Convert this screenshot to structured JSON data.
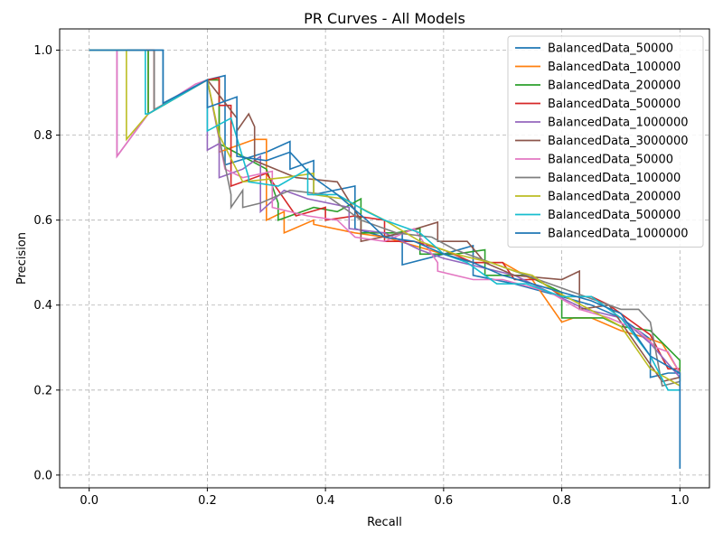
{
  "chart_data": {
    "type": "line",
    "title": "PR Curves - All Models",
    "xlabel": "Recall",
    "ylabel": "Precision",
    "xlim": [
      -0.05,
      1.05
    ],
    "ylim": [
      -0.03,
      1.05
    ],
    "xticks": [
      0.0,
      0.2,
      0.4,
      0.6,
      0.8,
      1.0
    ],
    "xtick_labels": [
      "0.0",
      "0.2",
      "0.4",
      "0.6",
      "0.8",
      "1.0"
    ],
    "yticks": [
      0.0,
      0.2,
      0.4,
      0.6,
      0.8,
      1.0
    ],
    "ytick_labels": [
      "0.0",
      "0.2",
      "0.4",
      "0.6",
      "0.8",
      "1.0"
    ],
    "grid": true,
    "grid_style": "dashed",
    "legend_position": "top-right",
    "series": [
      {
        "name": "BalancedData_50000",
        "color": "#1f77b4",
        "x": [
          0.0,
          0.125,
          0.125,
          0.2,
          0.23,
          0.23,
          0.3,
          0.34,
          0.34,
          0.38,
          0.38,
          0.45,
          0.45,
          0.5,
          0.53,
          0.53,
          0.6,
          0.65,
          0.65,
          0.72,
          0.8,
          0.85,
          0.9,
          0.93,
          0.95,
          0.95,
          0.98,
          1.0,
          1.0
        ],
        "y": [
          1.0,
          1.0,
          0.875,
          0.93,
          0.94,
          0.73,
          0.76,
          0.785,
          0.72,
          0.74,
          0.66,
          0.68,
          0.58,
          0.56,
          0.57,
          0.495,
          0.52,
          0.54,
          0.47,
          0.45,
          0.42,
          0.4,
          0.37,
          0.34,
          0.32,
          0.23,
          0.24,
          0.24,
          0.015
        ]
      },
      {
        "name": "BalancedData_100000",
        "color": "#ff7f0e",
        "x": [
          0.0,
          0.1,
          0.1,
          0.2,
          0.22,
          0.22,
          0.28,
          0.3,
          0.3,
          0.33,
          0.33,
          0.38,
          0.38,
          0.45,
          0.5,
          0.55,
          0.6,
          0.65,
          0.7,
          0.75,
          0.8,
          0.82,
          0.85,
          0.9,
          0.95,
          0.97,
          1.0
        ],
        "y": [
          1.0,
          1.0,
          0.85,
          0.93,
          0.93,
          0.76,
          0.79,
          0.79,
          0.6,
          0.62,
          0.57,
          0.6,
          0.59,
          0.57,
          0.56,
          0.54,
          0.52,
          0.5,
          0.5,
          0.46,
          0.36,
          0.37,
          0.37,
          0.34,
          0.32,
          0.31,
          0.24
        ]
      },
      {
        "name": "BalancedData_200000",
        "color": "#2ca02c",
        "x": [
          0.0,
          0.1,
          0.1,
          0.2,
          0.22,
          0.22,
          0.3,
          0.32,
          0.32,
          0.38,
          0.42,
          0.46,
          0.46,
          0.52,
          0.56,
          0.56,
          0.62,
          0.67,
          0.67,
          0.74,
          0.8,
          0.8,
          0.87,
          0.9,
          0.95,
          1.0,
          1.0
        ],
        "y": [
          1.0,
          1.0,
          0.85,
          0.93,
          0.93,
          0.78,
          0.72,
          0.64,
          0.6,
          0.63,
          0.62,
          0.65,
          0.57,
          0.57,
          0.58,
          0.52,
          0.52,
          0.53,
          0.47,
          0.47,
          0.43,
          0.37,
          0.37,
          0.35,
          0.34,
          0.27,
          0.22
        ]
      },
      {
        "name": "BalancedData_500000",
        "color": "#d62728",
        "x": [
          0.0,
          0.11,
          0.11,
          0.2,
          0.22,
          0.22,
          0.24,
          0.24,
          0.3,
          0.35,
          0.4,
          0.4,
          0.45,
          0.5,
          0.5,
          0.55,
          0.6,
          0.65,
          0.7,
          0.72,
          0.76,
          0.8,
          0.85,
          0.88,
          0.92,
          0.95,
          0.98,
          1.0
        ],
        "y": [
          1.0,
          1.0,
          0.86,
          0.93,
          0.935,
          0.87,
          0.87,
          0.68,
          0.71,
          0.61,
          0.63,
          0.6,
          0.61,
          0.6,
          0.55,
          0.55,
          0.53,
          0.5,
          0.5,
          0.46,
          0.46,
          0.42,
          0.42,
          0.4,
          0.36,
          0.33,
          0.25,
          0.25
        ]
      },
      {
        "name": "BalancedData_1000000",
        "color": "#9467bd",
        "x": [
          0.0,
          0.047,
          0.047,
          0.1,
          0.2,
          0.2,
          0.22,
          0.22,
          0.26,
          0.29,
          0.29,
          0.33,
          0.37,
          0.44,
          0.44,
          0.5,
          0.56,
          0.6,
          0.66,
          0.72,
          0.78,
          0.84,
          0.9,
          0.95,
          1.0
        ],
        "y": [
          1.0,
          1.0,
          0.75,
          0.85,
          0.93,
          0.765,
          0.78,
          0.7,
          0.72,
          0.75,
          0.62,
          0.67,
          0.65,
          0.63,
          0.58,
          0.57,
          0.53,
          0.51,
          0.49,
          0.47,
          0.43,
          0.39,
          0.37,
          0.31,
          0.23
        ]
      },
      {
        "name": "BalancedData_3000000",
        "color": "#8c564b",
        "x": [
          0.0,
          0.11,
          0.11,
          0.2,
          0.25,
          0.25,
          0.27,
          0.28,
          0.28,
          0.35,
          0.42,
          0.46,
          0.46,
          0.53,
          0.59,
          0.59,
          0.64,
          0.67,
          0.72,
          0.8,
          0.83,
          0.83,
          0.88,
          0.93,
          0.97,
          1.0
        ],
        "y": [
          1.0,
          1.0,
          0.86,
          0.93,
          0.84,
          0.81,
          0.85,
          0.82,
          0.74,
          0.7,
          0.69,
          0.6,
          0.55,
          0.57,
          0.595,
          0.55,
          0.55,
          0.5,
          0.47,
          0.46,
          0.48,
          0.39,
          0.4,
          0.3,
          0.22,
          0.23
        ]
      },
      {
        "name": "BalancedData_50000",
        "color": "#e377c2",
        "x": [
          0.0,
          0.047,
          0.047,
          0.1,
          0.18,
          0.2,
          0.23,
          0.26,
          0.31,
          0.31,
          0.37,
          0.42,
          0.45,
          0.5,
          0.55,
          0.59,
          0.59,
          0.65,
          0.7,
          0.78,
          0.83,
          0.88,
          0.93,
          0.96,
          0.98,
          1.0
        ],
        "y": [
          1.0,
          1.0,
          0.75,
          0.85,
          0.92,
          0.93,
          0.72,
          0.7,
          0.715,
          0.63,
          0.61,
          0.6,
          0.56,
          0.55,
          0.58,
          0.5,
          0.48,
          0.46,
          0.46,
          0.43,
          0.39,
          0.37,
          0.34,
          0.3,
          0.29,
          0.24
        ]
      },
      {
        "name": "BalancedData_100000",
        "color": "#7f7f7f",
        "x": [
          0.0,
          0.11,
          0.11,
          0.2,
          0.24,
          0.24,
          0.26,
          0.26,
          0.29,
          0.34,
          0.4,
          0.46,
          0.52,
          0.58,
          0.62,
          0.66,
          0.72,
          0.78,
          0.82,
          0.86,
          0.9,
          0.93,
          0.95,
          0.97,
          1.0
        ],
        "y": [
          1.0,
          1.0,
          0.86,
          0.93,
          0.66,
          0.63,
          0.67,
          0.63,
          0.64,
          0.67,
          0.66,
          0.6,
          0.57,
          0.56,
          0.53,
          0.51,
          0.48,
          0.45,
          0.43,
          0.41,
          0.39,
          0.39,
          0.36,
          0.21,
          0.22
        ]
      },
      {
        "name": "BalancedData_200000",
        "color": "#bcbd22",
        "x": [
          0.0,
          0.063,
          0.063,
          0.1,
          0.2,
          0.2,
          0.22,
          0.22,
          0.26,
          0.33,
          0.38,
          0.38,
          0.43,
          0.5,
          0.56,
          0.62,
          0.68,
          0.72,
          0.75,
          0.78,
          0.82,
          0.86,
          0.9,
          0.95,
          1.0
        ],
        "y": [
          1.0,
          1.0,
          0.79,
          0.85,
          0.93,
          0.93,
          0.8,
          0.8,
          0.69,
          0.7,
          0.71,
          0.66,
          0.65,
          0.6,
          0.55,
          0.52,
          0.5,
          0.48,
          0.47,
          0.44,
          0.41,
          0.38,
          0.35,
          0.25,
          0.21
        ]
      },
      {
        "name": "BalancedData_500000",
        "color": "#17becf",
        "x": [
          0.0,
          0.095,
          0.095,
          0.1,
          0.2,
          0.2,
          0.24,
          0.27,
          0.27,
          0.32,
          0.37,
          0.37,
          0.42,
          0.47,
          0.5,
          0.56,
          0.6,
          0.64,
          0.69,
          0.74,
          0.8,
          0.85,
          0.9,
          0.95,
          0.98,
          1.0
        ],
        "y": [
          1.0,
          1.0,
          0.85,
          0.85,
          0.93,
          0.81,
          0.84,
          0.7,
          0.69,
          0.68,
          0.72,
          0.66,
          0.66,
          0.62,
          0.6,
          0.57,
          0.52,
          0.5,
          0.45,
          0.45,
          0.42,
          0.42,
          0.37,
          0.28,
          0.2,
          0.2
        ]
      },
      {
        "name": "BalancedData_1000000",
        "color": "#1f77b4",
        "x": [
          0.0,
          0.125,
          0.125,
          0.2,
          0.2,
          0.25,
          0.25,
          0.3,
          0.34,
          0.38,
          0.42,
          0.47,
          0.5,
          0.55,
          0.6,
          0.65,
          0.7,
          0.75,
          0.8,
          0.85,
          0.9,
          0.95,
          1.0,
          1.0
        ],
        "y": [
          1.0,
          1.0,
          0.875,
          0.93,
          0.865,
          0.89,
          0.75,
          0.74,
          0.76,
          0.7,
          0.66,
          0.6,
          0.56,
          0.55,
          0.52,
          0.5,
          0.47,
          0.45,
          0.43,
          0.41,
          0.38,
          0.28,
          0.24,
          0.015
        ]
      }
    ]
  }
}
